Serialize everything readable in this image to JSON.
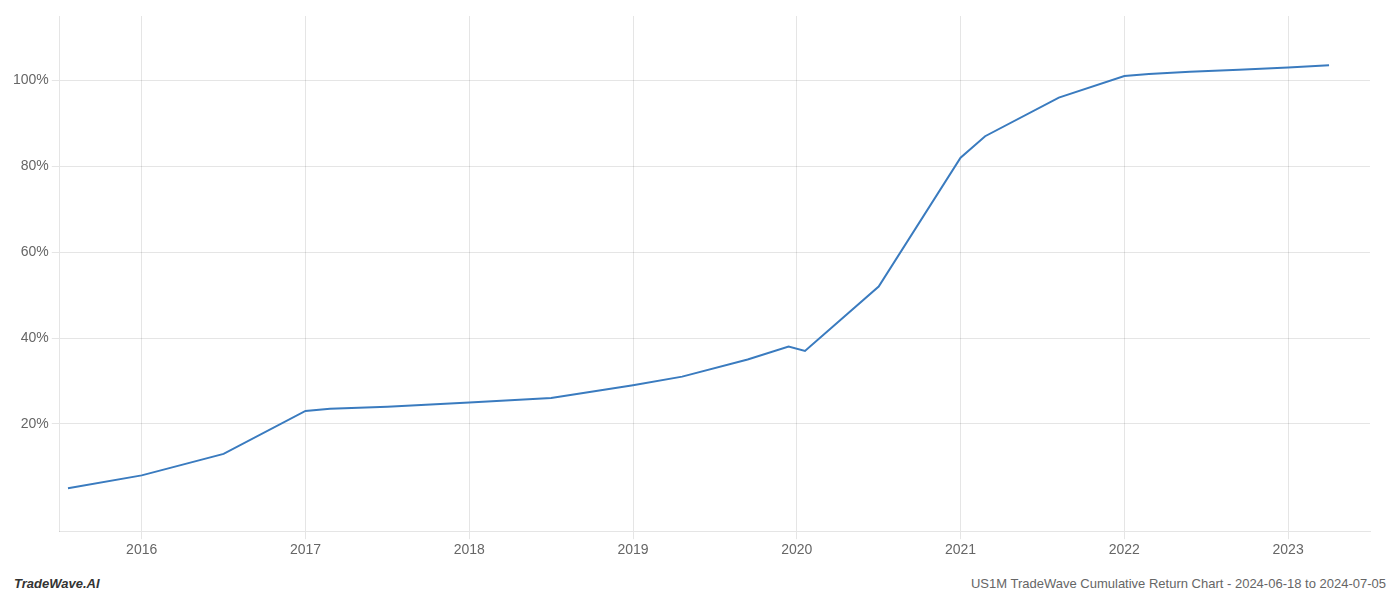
{
  "chart_data": {
    "type": "line",
    "x": [
      2015.55,
      2016.0,
      2016.5,
      2017.0,
      2017.15,
      2017.5,
      2018.0,
      2018.5,
      2019.0,
      2019.3,
      2019.7,
      2019.95,
      2020.05,
      2020.5,
      2021.0,
      2021.15,
      2021.6,
      2022.0,
      2022.15,
      2022.4,
      2022.7,
      2023.0,
      2023.25
    ],
    "values": [
      5,
      8,
      13,
      23,
      23.5,
      24,
      25,
      26,
      29,
      31,
      35,
      38,
      37,
      52,
      82,
      87,
      96,
      101,
      101.5,
      102,
      102.5,
      103,
      103.5
    ],
    "color": "#3a7bbf",
    "xlim": [
      2015.5,
      2023.5
    ],
    "ylim": [
      -5,
      115
    ],
    "xticks": [
      2016,
      2017,
      2018,
      2019,
      2020,
      2021,
      2022,
      2023
    ],
    "yticks": [
      {
        "value": 20,
        "label": "20%"
      },
      {
        "value": 40,
        "label": "40%"
      },
      {
        "value": 60,
        "label": "60%"
      },
      {
        "value": 80,
        "label": "80%"
      },
      {
        "value": 100,
        "label": "100%"
      }
    ],
    "grid": true,
    "annotations": [
      "TradeWave.AI",
      "US1M TradeWave Cumulative Return Chart - 2024-06-18 to 2024-07-05"
    ]
  }
}
